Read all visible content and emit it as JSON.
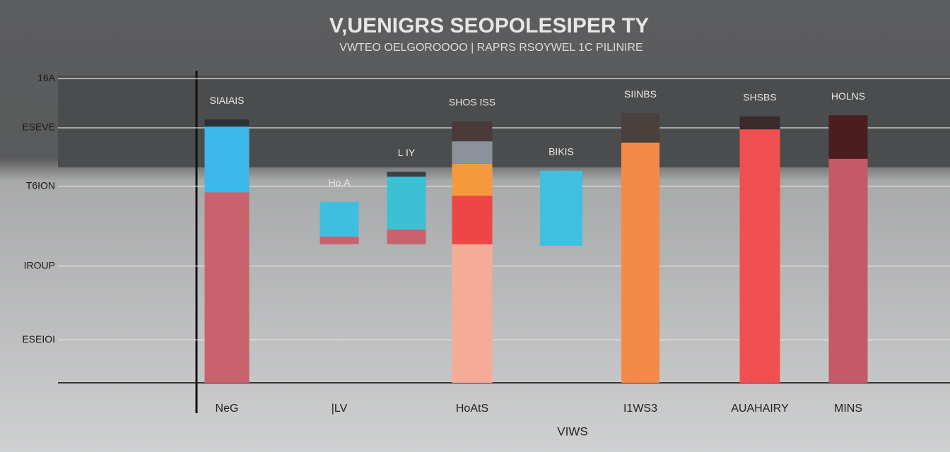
{
  "chart_data": {
    "type": "floating_bar",
    "title": "V,UENIGRS SEOPOLESIPER TY",
    "subtitle": "VWTEO OELGOROOOO | RAPRS RSOYWEL 1C PILINIRE",
    "x_label": "VIWS",
    "categories": [
      "NeG",
      "|LV",
      null,
      "HoAtS",
      null,
      "I1WS3",
      "AUAHAIRY",
      "MINS"
    ],
    "bar_labels": [
      "SIAIAIS",
      "Ho.A",
      "L IY",
      "SHOS ISS",
      "BIKIS",
      "SIINBS",
      "SHSBS",
      "HOLNS"
    ],
    "segments": [
      [
        {
          "values": [
            0,
            62
          ],
          "color": "#c9626c"
        },
        {
          "values": [
            62,
            83.4
          ],
          "color": "#3db8ea"
        },
        {
          "values": [
            83.4,
            85.7
          ],
          "color": "#2b3138"
        }
      ],
      [
        {
          "values": [
            45.1,
            47.6
          ],
          "color": "#c9626c"
        },
        {
          "values": [
            47.6,
            58.9
          ],
          "color": "#3fbfe0"
        }
      ],
      [
        {
          "values": [
            45.1,
            49.9
          ],
          "color": "#c9626c"
        },
        {
          "values": [
            49.9,
            67.1
          ],
          "color": "#3cc0d4"
        },
        {
          "values": [
            67.1,
            68.7
          ],
          "color": "#3a3f44"
        }
      ],
      [
        {
          "values": [
            0,
            45.1
          ],
          "color": "#f5ab98"
        },
        {
          "values": [
            45.1,
            60.9
          ],
          "color": "#ee4545"
        },
        {
          "values": [
            60.9,
            71.3
          ],
          "color": "#f59a3c"
        },
        {
          "values": [
            71.3,
            78.6
          ],
          "color": "#8c929c"
        },
        {
          "values": [
            78.6,
            85.1
          ],
          "color": "#4a3a3a"
        }
      ],
      [
        {
          "values": [
            44.6,
            69
          ],
          "color": "#3fc0de"
        }
      ],
      [
        {
          "values": [
            0,
            78.2
          ],
          "color": "#f58a48"
        },
        {
          "values": [
            78.2,
            87.8
          ],
          "color": "#4a403e"
        }
      ],
      [
        {
          "values": [
            0,
            82.5
          ],
          "color": "#f05050"
        },
        {
          "values": [
            82.5,
            86.7
          ],
          "color": "#3a2a2a"
        }
      ],
      [
        {
          "values": [
            0,
            72.9
          ],
          "color": "#c45a66"
        },
        {
          "values": [
            72.9,
            87.1
          ],
          "color": "#4a1e1e"
        }
      ]
    ],
    "ylim": [
      0,
      100
    ],
    "yticks": [
      {
        "value": 99,
        "label": "16A"
      },
      {
        "value": 83,
        "label": "ESEVE"
      },
      {
        "value": 64,
        "label": "T6ION"
      },
      {
        "value": 38,
        "label": "IROUP"
      },
      {
        "value": 14,
        "label": "ESEIOI"
      }
    ],
    "grid": true
  }
}
